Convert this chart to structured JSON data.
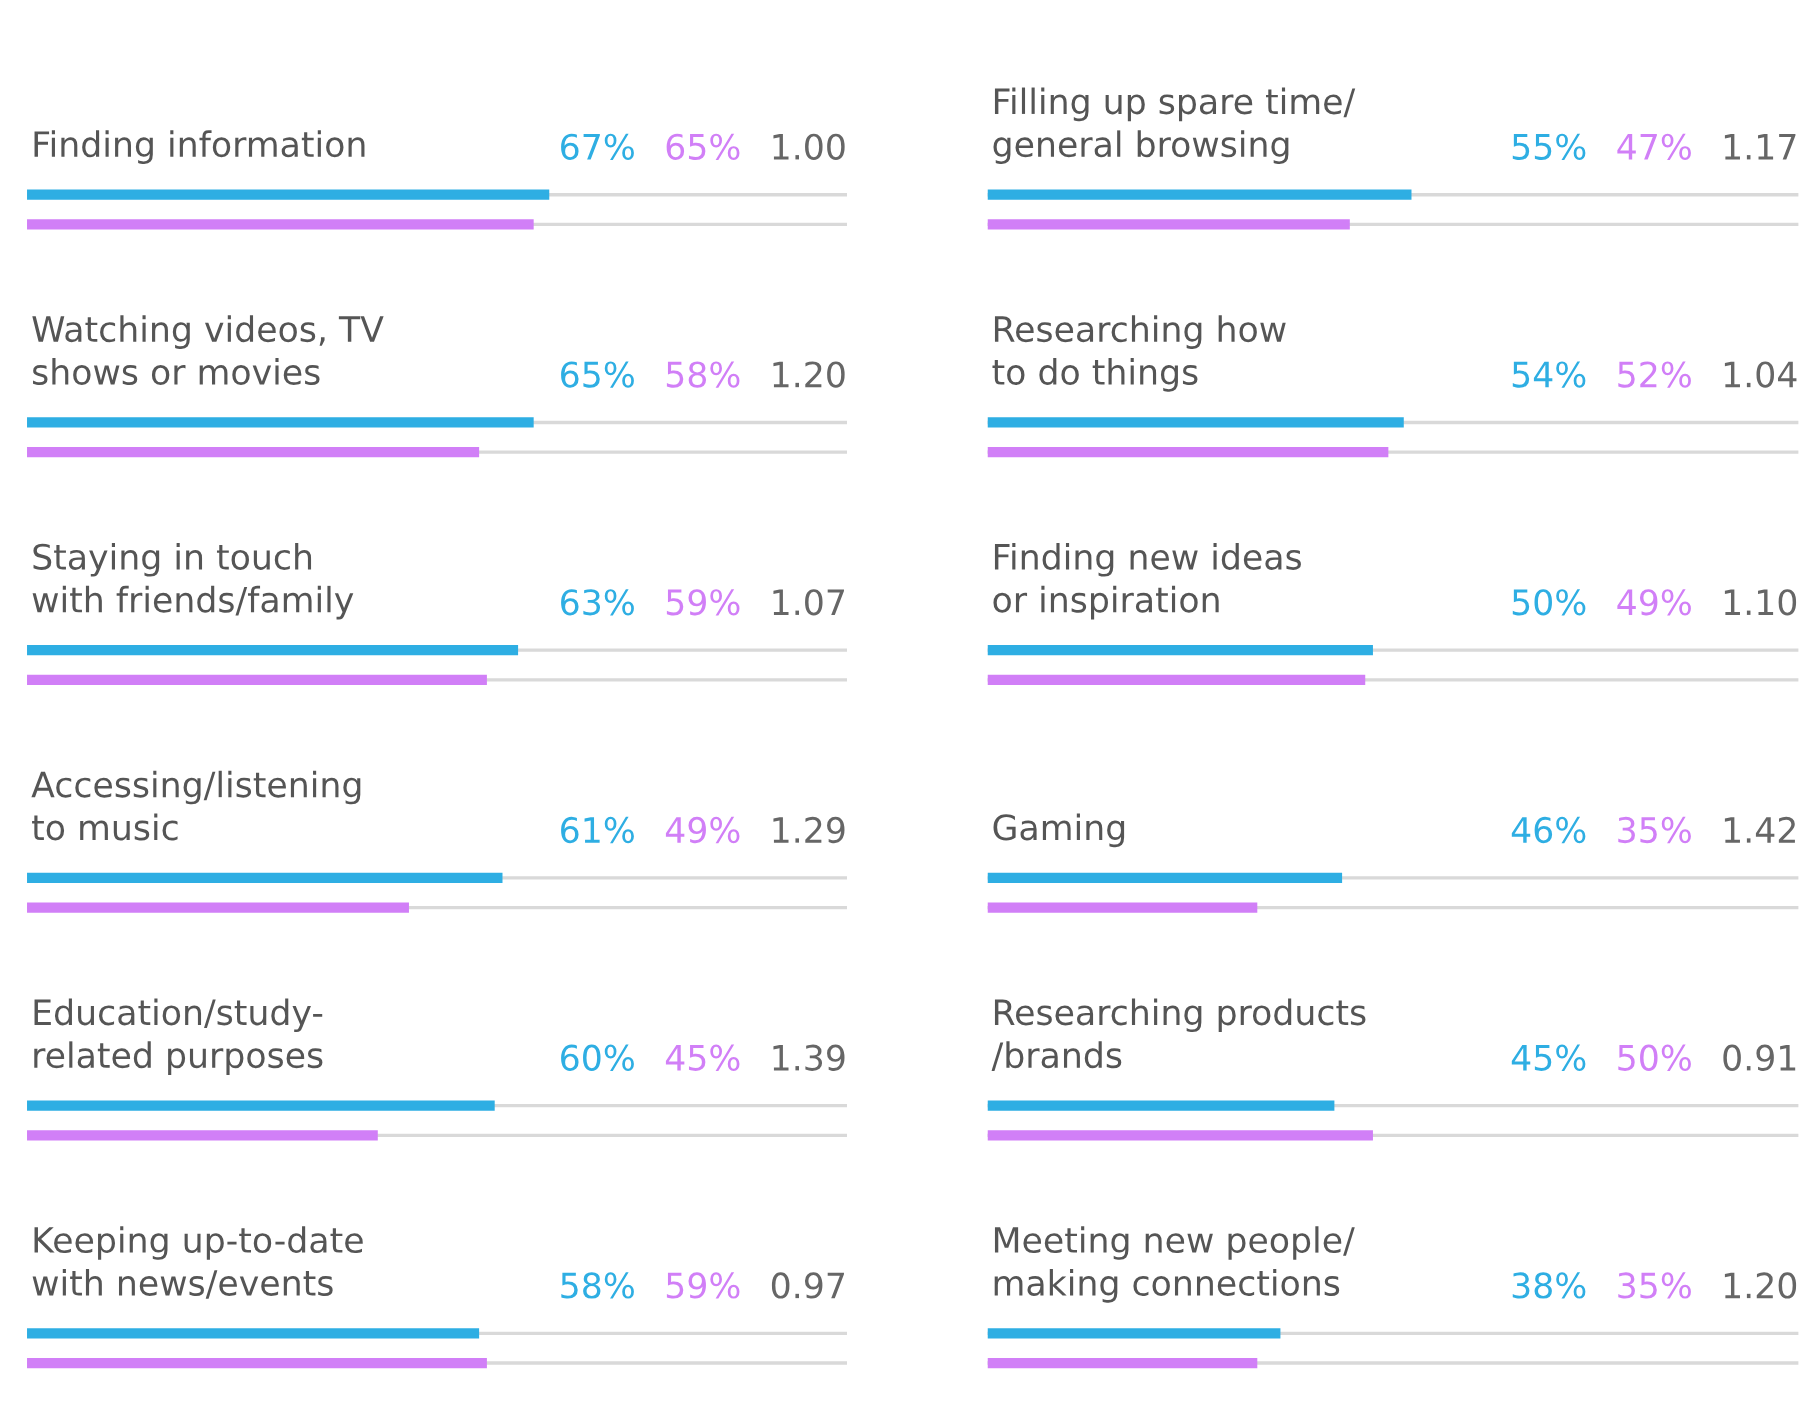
{
  "chart_data": [
    {
      "type": "bar",
      "orientation": "horizontal",
      "tick_labels": false,
      "categories": [
        "Finding information",
        "Watching videos, TV\nshows or movies",
        "Staying in touch\nwith friends/family",
        "Accessing/listening\nto music",
        "Education/study-\nrelated purposes",
        "Keeping up-to-date\nwith news/events"
      ],
      "series": [
        {
          "color": "#2eaee3",
          "values": [
            67,
            65,
            63,
            61,
            60,
            58
          ],
          "value_labels": [
            "67%",
            "65%",
            "63%",
            "61%",
            "60%",
            "58%"
          ]
        },
        {
          "color": "#d17ff7",
          "values": [
            65,
            58,
            59,
            49,
            45,
            59
          ],
          "value_labels": [
            "65%",
            "58%",
            "59%",
            "49%",
            "45%",
            "59%"
          ]
        }
      ],
      "annotations": [
        "1.00",
        "1.20",
        "1.07",
        "1.29",
        "1.39",
        "0.97"
      ]
    },
    {
      "type": "bar",
      "orientation": "horizontal",
      "tick_labels": false,
      "categories": [
        "Filling up spare time/\ngeneral browsing",
        "Researching how\nto do things",
        "Finding new ideas\nor inspiration",
        "Gaming",
        "Researching products\n/brands",
        "Meeting new people/\nmaking connections"
      ],
      "series": [
        {
          "color": "#2eaee3",
          "values": [
            55,
            54,
            50,
            46,
            45,
            38
          ],
          "value_labels": [
            "55%",
            "54%",
            "50%",
            "46%",
            "45%",
            "38%"
          ]
        },
        {
          "color": "#d17ff7",
          "values": [
            47,
            52,
            49,
            35,
            50,
            35
          ],
          "value_labels": [
            "47%",
            "52%",
            "49%",
            "35%",
            "50%",
            "35%"
          ]
        }
      ],
      "annotations": [
        "1.17",
        "1.04",
        "1.10",
        "1.42",
        "0.91",
        "1.20"
      ]
    }
  ]
}
